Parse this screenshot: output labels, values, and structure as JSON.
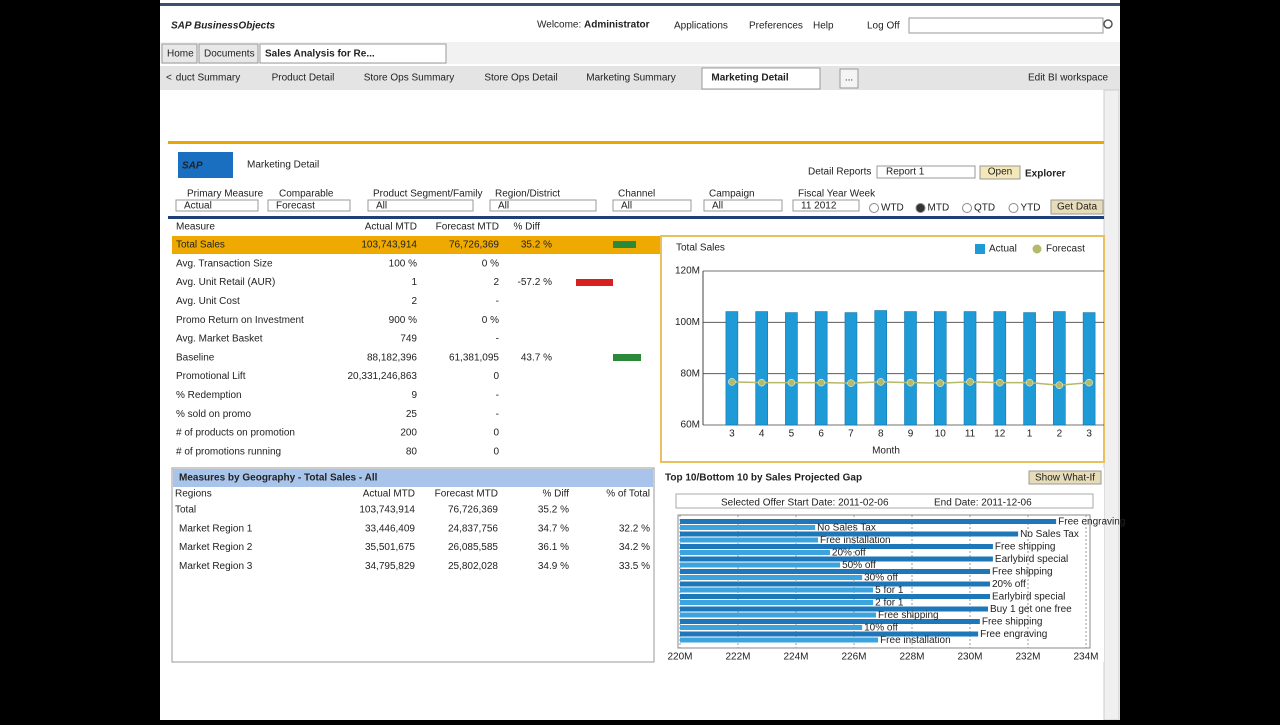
{
  "header": {
    "logo": "SAP BusinessObjects",
    "welcome": "Welcome:",
    "user": "Administrator",
    "menu": [
      "Applications",
      "Preferences",
      "Help",
      "Log Off"
    ]
  },
  "tabs": [
    "Home",
    "Documents",
    "Sales Analysis for Re..."
  ],
  "subtabs": {
    "items": [
      "duct Summary",
      "Product Detail",
      "Store Ops Summary",
      "Store Ops Detail",
      "Marketing Summary",
      "Marketing Detail"
    ],
    "more": "...",
    "edit": "Edit BI workspace"
  },
  "dashboard": {
    "logo": "SAP",
    "title": "Marketing Detail",
    "detail_label": "Detail Reports",
    "report": "Report 1",
    "open": "Open",
    "explorer": "Explorer",
    "filters": [
      {
        "label": "Primary Measure",
        "value": "Actual"
      },
      {
        "label": "Comparable",
        "value": "Forecast"
      },
      {
        "label": "Product Segment/Family",
        "value": "All"
      },
      {
        "label": "Region/District",
        "value": "All"
      },
      {
        "label": "Channel",
        "value": "All"
      },
      {
        "label": "Campaign",
        "value": "All"
      },
      {
        "label": "Fiscal Year Week",
        "value": "11 2012"
      }
    ],
    "periods": [
      "WTD",
      "MTD",
      "QTD",
      "YTD"
    ],
    "selected_period": 1,
    "get_data": "Get Data"
  },
  "measures": {
    "columns": [
      "Measure",
      "Actual MTD",
      "Forecast MTD",
      "% Diff"
    ],
    "rows": [
      [
        "Total Sales",
        "103,743,914",
        "76,726,369",
        "35.2 %"
      ],
      [
        "Avg. Transaction Size",
        "100 %",
        "0 %"
      ],
      [
        "Avg. Unit Retail (AUR)",
        "1",
        "2",
        "-57.2 %"
      ],
      [
        "Avg. Unit Cost",
        "2",
        "-"
      ],
      [
        "Promo Return on Investment",
        "900 %",
        "0 %"
      ],
      [
        "Avg. Market Basket",
        "749",
        "-"
      ],
      [
        "Baseline",
        "88,182,396",
        "61,381,095",
        "43.7 %"
      ],
      [
        "Promotional Lift",
        "20,331,246,863",
        "0"
      ],
      [
        "% Redemption",
        "9",
        "-"
      ],
      [
        "% sold on promo",
        "25",
        "-"
      ],
      [
        "# of products on promotion",
        "200",
        "0"
      ],
      [
        "# of promotions running",
        "80",
        "0"
      ]
    ]
  },
  "geography": {
    "title": "Measures by Geography - Total Sales - All",
    "columns": [
      "Regions",
      "Actual MTD",
      "Forecast MTD",
      "% Diff",
      "% of Total"
    ],
    "rows": [
      [
        "Total",
        "103,743,914",
        "76,726,369",
        "35.2 %"
      ],
      [
        "Market Region 1",
        "33,446,409",
        "24,837,756",
        "34.7 %",
        "32.2 %"
      ],
      [
        "Market Region 2",
        "35,501,675",
        "26,085,585",
        "36.1 %",
        "34.2 %"
      ],
      [
        "Market Region 3",
        "34,795,829",
        "25,802,028",
        "34.9 %",
        "33.5 %"
      ]
    ]
  },
  "chart_data": [
    {
      "type": "bar",
      "title": "Total Sales",
      "xlabel": "Month",
      "categories": [
        "3",
        "4",
        "5",
        "6",
        "7",
        "8",
        "9",
        "10",
        "11",
        "12",
        "1",
        "2",
        "3"
      ],
      "series": [
        {
          "name": "Actual",
          "color": "#1e9ad6",
          "values": [
            104200000,
            104200000,
            103800000,
            104200000,
            103800000,
            104600000,
            104200000,
            104200000,
            104200000,
            104200000,
            103800000,
            104200000,
            103800000
          ]
        },
        {
          "name": "Forecast",
          "color": "#b5b96a",
          "mark": "line",
          "values": [
            76800000,
            76500000,
            76500000,
            76500000,
            76300000,
            76800000,
            76500000,
            76300000,
            76800000,
            76500000,
            76500000,
            75500000,
            76500000
          ]
        }
      ],
      "ylim": [
        60000000,
        120000000
      ],
      "yticks": [
        {
          "value": 60000000,
          "label": "60M"
        },
        {
          "value": 80000000,
          "label": "80M"
        },
        {
          "value": 100000000,
          "label": "100M"
        },
        {
          "value": 120000000,
          "label": "120M"
        }
      ],
      "grid": true
    },
    {
      "type": "hbar",
      "title": "Top 10/Bottom 10 by Sales Projected Gap",
      "button": "Show What-If",
      "notes": [
        "Selected Offer Start Date: 2011-02-06",
        "End Date: 2011-12-06"
      ],
      "series": [
        {
          "color": "#1d77b8",
          "labels": [
            "Free engraving",
            "No Sales Tax",
            "Free shipping",
            "Earlybird special",
            "Free shipping",
            "20% off",
            "Earlybird special",
            "Buy 1 get one free",
            "Free shipping",
            "Free engraving"
          ],
          "values": [
            232970000,
            231660000,
            230790000,
            230790000,
            230690000,
            230690000,
            230690000,
            230620000,
            230340000,
            230280000
          ]
        },
        {
          "color": "#3ba3de",
          "labels": [
            "No Sales Tax",
            "Free installation",
            "20% off",
            "50% off",
            "30% off",
            "5 for 1",
            "2 for 1",
            "Free shipping",
            "10% off",
            "Free installation"
          ],
          "values": [
            224660000,
            224760000,
            225170000,
            225520000,
            226280000,
            226660000,
            226660000,
            226760000,
            226280000,
            226830000
          ]
        }
      ],
      "xlim": [
        220000000,
        234000000
      ],
      "xticks": [
        {
          "value": 220000000,
          "label": "220M"
        },
        {
          "value": 222000000,
          "label": "222M"
        },
        {
          "value": 224000000,
          "label": "224M"
        },
        {
          "value": 226000000,
          "label": "226M"
        },
        {
          "value": 228000000,
          "label": "228M"
        },
        {
          "value": 230000000,
          "label": "230M"
        },
        {
          "value": 232000000,
          "label": "232M"
        },
        {
          "value": 234000000,
          "label": "234M"
        }
      ],
      "grid": true
    }
  ]
}
